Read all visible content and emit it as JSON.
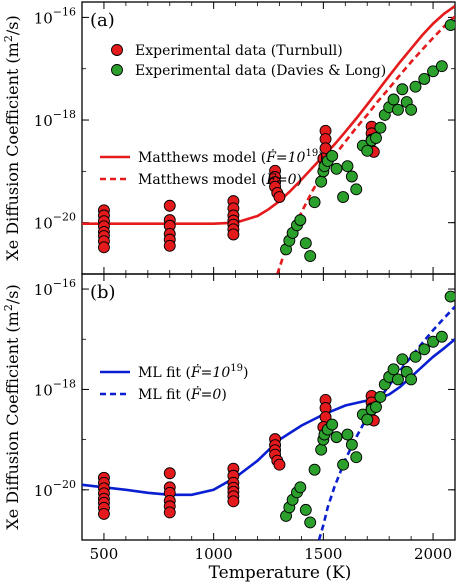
{
  "chart_data": [
    {
      "type": "scatter",
      "panel_label": "(a)",
      "xlim": [
        400,
        2100
      ],
      "ylim_log10": [
        -21.0,
        -15.7
      ],
      "yscale": "log",
      "x_ticks": [
        500,
        1000,
        1500,
        2000
      ],
      "y_ticks": [
        {
          "exp": -20,
          "label_base": "10",
          "label_exp": "−20"
        },
        {
          "exp": -18,
          "label_base": "10",
          "label_exp": "−18"
        },
        {
          "exp": -16,
          "label_base": "10",
          "label_exp": "−16"
        }
      ],
      "legend": {
        "placement": "top-left"
      },
      "series": [
        {
          "name": "Experimental data (Turnbull)",
          "kind": "points",
          "color": "#e41a1c",
          "x": [
            500,
            500,
            500,
            500,
            500,
            500,
            500,
            500,
            800,
            800,
            800,
            800,
            800,
            800,
            1090,
            1090,
            1090,
            1090,
            1090,
            1090,
            1090,
            1280,
            1280,
            1280,
            1280,
            1290,
            1300,
            1510,
            1510,
            1510,
            1500,
            1720,
            1720,
            1720,
            1710,
            1730
          ],
          "y": [
            -19.76,
            -19.86,
            -19.97,
            -20.07,
            -20.18,
            -20.26,
            -20.36,
            -20.48,
            -19.67,
            -19.95,
            -20.06,
            -20.22,
            -20.33,
            -20.45,
            -19.58,
            -19.72,
            -19.86,
            -19.96,
            -20.04,
            -20.13,
            -20.23,
            -18.99,
            -19.11,
            -19.21,
            -19.3,
            -19.42,
            -19.5,
            -18.21,
            -18.37,
            -18.55,
            -18.75,
            -18.13,
            -18.26,
            -18.38,
            -18.5,
            -18.62
          ]
        },
        {
          "name": "Experimental data (Davies & Long)",
          "kind": "points",
          "color": "#2ca02c",
          "x": [
            1330,
            1345,
            1360,
            1380,
            1395,
            1420,
            1440,
            1460,
            1490,
            1500,
            1505,
            1520,
            1540,
            1560,
            1590,
            1610,
            1630,
            1650,
            1680,
            1700,
            1720,
            1740,
            1760,
            1780,
            1800,
            1820,
            1840,
            1860,
            1880,
            1900,
            1920,
            1960,
            2000,
            2040,
            2080
          ],
          "y": [
            -20.52,
            -20.35,
            -20.2,
            -20.05,
            -19.95,
            -20.4,
            -20.65,
            -19.6,
            -19.2,
            -19.0,
            -18.9,
            -18.8,
            -18.7,
            -18.95,
            -19.5,
            -18.9,
            -19.1,
            -19.35,
            -18.5,
            -18.6,
            -18.4,
            -18.35,
            -18.15,
            -17.9,
            -17.75,
            -17.6,
            -17.8,
            -17.4,
            -17.65,
            -17.8,
            -17.35,
            -17.2,
            -17.05,
            -16.95,
            -16.15
          ]
        },
        {
          "name": "Matthews model",
          "name_math": "Ḟ=10",
          "name_exp": "19",
          "kind": "line",
          "style": "solid",
          "color": "#e41a1c",
          "x": [
            400,
            500,
            700,
            900,
            1000,
            1100,
            1200,
            1250,
            1300,
            1350,
            1400,
            1450,
            1500,
            1550,
            1600,
            1650,
            1700,
            1750,
            1800,
            1850,
            1900,
            1950,
            2000,
            2050,
            2100
          ],
          "y": [
            -20.02,
            -20.02,
            -20.02,
            -20.02,
            -20.02,
            -20.0,
            -19.87,
            -19.74,
            -19.58,
            -19.38,
            -19.16,
            -18.93,
            -18.7,
            -18.48,
            -18.23,
            -17.97,
            -17.7,
            -17.42,
            -17.14,
            -16.87,
            -16.61,
            -16.35,
            -16.12,
            -15.93,
            -15.78
          ]
        },
        {
          "name": "Matthews model",
          "name_math": "Ḟ=0",
          "kind": "line",
          "style": "dashed",
          "color": "#e41a1c",
          "x": [
            1290,
            1320,
            1350,
            1400,
            1450,
            1500,
            1550,
            1600,
            1650,
            1700,
            1750,
            1800,
            1850,
            1900,
            1950,
            2000,
            2050,
            2100
          ],
          "y": [
            -21.0,
            -20.62,
            -20.25,
            -19.8,
            -19.38,
            -19.02,
            -18.7,
            -18.42,
            -18.15,
            -17.9,
            -17.63,
            -17.38,
            -17.12,
            -16.87,
            -16.63,
            -16.4,
            -16.18,
            -15.98
          ]
        }
      ]
    },
    {
      "type": "scatter",
      "panel_label": "(b)",
      "xlim": [
        400,
        2100
      ],
      "ylim_log10": [
        -21.0,
        -15.7
      ],
      "yscale": "log",
      "x_ticks": [
        500,
        1000,
        1500,
        2000
      ],
      "x_label": "Temperature (K)",
      "y_ticks": [
        {
          "exp": -20,
          "label_base": "10",
          "label_exp": "−20"
        },
        {
          "exp": -18,
          "label_base": "10",
          "label_exp": "−18"
        },
        {
          "exp": -16,
          "label_base": "10",
          "label_exp": "−16"
        }
      ],
      "legend": {
        "placement": "center"
      },
      "series": [
        {
          "name": "Experimental data (Turnbull)",
          "kind": "points",
          "color": "#e41a1c",
          "x": [
            500,
            500,
            500,
            500,
            500,
            500,
            500,
            500,
            800,
            800,
            800,
            800,
            800,
            800,
            1090,
            1090,
            1090,
            1090,
            1090,
            1090,
            1090,
            1280,
            1280,
            1280,
            1280,
            1290,
            1300,
            1510,
            1510,
            1510,
            1500,
            1720,
            1720,
            1720,
            1710,
            1730
          ],
          "y": [
            -19.76,
            -19.86,
            -19.97,
            -20.07,
            -20.18,
            -20.26,
            -20.36,
            -20.48,
            -19.67,
            -19.95,
            -20.06,
            -20.22,
            -20.33,
            -20.45,
            -19.58,
            -19.72,
            -19.86,
            -19.96,
            -20.04,
            -20.13,
            -20.23,
            -18.99,
            -19.11,
            -19.21,
            -19.3,
            -19.42,
            -19.5,
            -18.21,
            -18.37,
            -18.55,
            -18.75,
            -18.13,
            -18.26,
            -18.38,
            -18.5,
            -18.62
          ]
        },
        {
          "name": "Experimental data (Davies & Long)",
          "kind": "points",
          "color": "#2ca02c",
          "x": [
            1330,
            1345,
            1360,
            1380,
            1395,
            1420,
            1440,
            1460,
            1490,
            1500,
            1505,
            1520,
            1540,
            1560,
            1590,
            1610,
            1630,
            1650,
            1680,
            1700,
            1720,
            1740,
            1760,
            1780,
            1800,
            1820,
            1840,
            1860,
            1880,
            1900,
            1920,
            1960,
            2000,
            2040,
            2080
          ],
          "y": [
            -20.52,
            -20.35,
            -20.2,
            -20.05,
            -19.95,
            -20.4,
            -20.65,
            -19.6,
            -19.2,
            -19.0,
            -18.9,
            -18.8,
            -18.7,
            -18.95,
            -19.5,
            -18.9,
            -19.1,
            -19.35,
            -18.5,
            -18.6,
            -18.4,
            -18.35,
            -18.15,
            -17.9,
            -17.75,
            -17.6,
            -17.8,
            -17.4,
            -17.65,
            -17.8,
            -17.35,
            -17.2,
            -17.05,
            -16.95,
            -16.15
          ]
        },
        {
          "name": "ML fit",
          "name_math": "Ḟ=10",
          "name_exp": "19",
          "kind": "line",
          "style": "solid",
          "color": "#0a1fd1",
          "x": [
            400,
            500,
            600,
            700,
            800,
            900,
            1000,
            1100,
            1200,
            1300,
            1400,
            1500,
            1600,
            1700,
            1750,
            1800,
            1850,
            1900,
            1950,
            2000,
            2050,
            2100
          ],
          "y": [
            -19.9,
            -19.95,
            -20.0,
            -20.06,
            -20.1,
            -20.1,
            -20.0,
            -19.75,
            -19.42,
            -19.0,
            -18.72,
            -18.5,
            -18.32,
            -18.22,
            -18.18,
            -18.1,
            -17.95,
            -17.75,
            -17.55,
            -17.35,
            -17.18,
            -17.0
          ]
        },
        {
          "name": "ML fit",
          "name_math": "Ḟ=0",
          "kind": "line",
          "style": "dashed",
          "color": "#0a1fd1",
          "x": [
            1480,
            1500,
            1520,
            1550,
            1600,
            1650,
            1700,
            1750,
            1800,
            1850,
            1900,
            1950,
            2000,
            2050,
            2100
          ],
          "y": [
            -21.0,
            -20.7,
            -20.35,
            -19.95,
            -19.4,
            -18.95,
            -18.55,
            -18.22,
            -17.92,
            -17.62,
            -17.35,
            -17.08,
            -16.82,
            -16.58,
            -16.35
          ]
        }
      ]
    }
  ],
  "y_axis_label_text": "Xe Diffusion Coefficient (m",
  "y_axis_label_sup": "2",
  "y_axis_label_tail": "/s)"
}
